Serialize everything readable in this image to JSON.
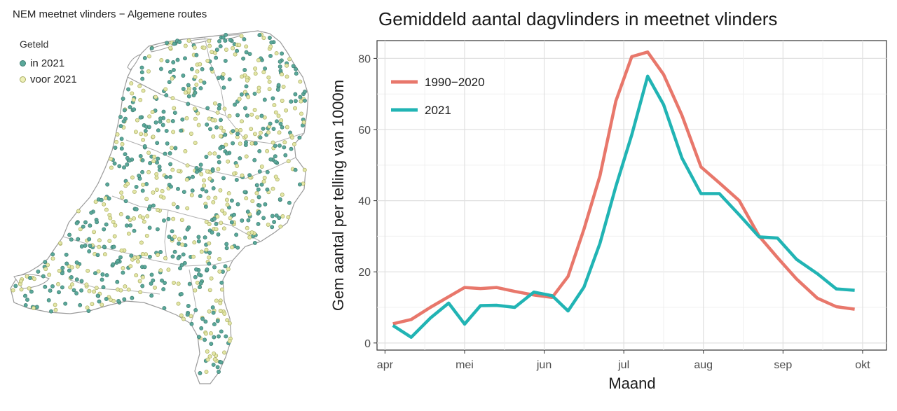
{
  "map": {
    "title": "NEM meetnet vlinders − Algemene routes",
    "legend_title": "Geteld",
    "legend_items": [
      {
        "label": "in 2021",
        "color": "#5aa89a"
      },
      {
        "label": "voor 2021",
        "color": "#e3e6a6"
      }
    ]
  },
  "chart_data": {
    "type": "line",
    "title": "Gemiddeld aantal dagvlinders in meetnet vlinders",
    "xlabel": "Maand",
    "ylabel": "Gem aantal per telling van 1000m",
    "x_tick_labels": [
      "apr",
      "mei",
      "jun",
      "jul",
      "aug",
      "sep",
      "okt"
    ],
    "x_unit": "months since 1 April",
    "xlim": [
      -0.1,
      6.3
    ],
    "ylim": [
      -2,
      85
    ],
    "y_ticks": [
      0,
      20,
      40,
      60,
      80
    ],
    "grid": true,
    "legend_position": "top-left",
    "series": [
      {
        "name": "1990−2020",
        "color": "#e8776b",
        "x": [
          0.1,
          0.33,
          0.57,
          0.8,
          1.0,
          1.2,
          1.4,
          1.63,
          1.87,
          2.1,
          2.3,
          2.5,
          2.7,
          2.9,
          3.1,
          3.3,
          3.5,
          3.73,
          3.97,
          4.2,
          4.45,
          4.7,
          4.93,
          5.17,
          5.43,
          5.67,
          5.9
        ],
        "values": [
          5.4,
          6.6,
          10,
          13,
          15.6,
          15.3,
          15.6,
          14.5,
          13.5,
          12.8,
          18.7,
          32,
          47,
          68,
          80.5,
          81.8,
          75.5,
          64,
          49.5,
          45,
          40,
          30,
          24,
          18,
          12.6,
          10.2,
          9.5
        ]
      },
      {
        "name": "2021",
        "color": "#21b4b4",
        "x": [
          0.1,
          0.33,
          0.57,
          0.8,
          1.0,
          1.2,
          1.4,
          1.63,
          1.87,
          2.1,
          2.3,
          2.5,
          2.7,
          2.9,
          3.1,
          3.3,
          3.5,
          3.73,
          3.97,
          4.2,
          4.45,
          4.7,
          4.93,
          5.17,
          5.43,
          5.67,
          5.9
        ],
        "values": [
          4.9,
          1.6,
          7,
          11.2,
          5.3,
          10.5,
          10.6,
          10.0,
          14.3,
          13.3,
          9.0,
          15.7,
          28,
          44,
          58.5,
          75,
          67,
          52,
          42,
          42,
          36,
          29.8,
          29.5,
          23.5,
          19.5,
          15.2,
          14.8
        ]
      }
    ]
  }
}
